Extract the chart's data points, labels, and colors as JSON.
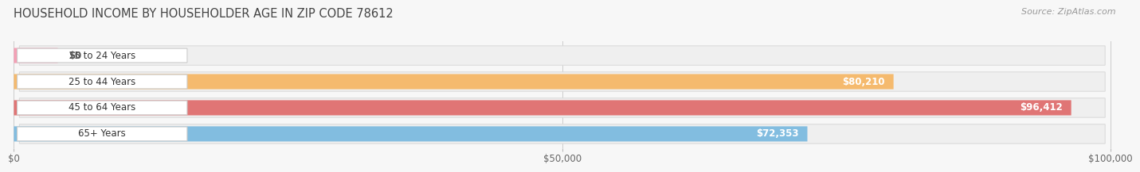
{
  "title": "HOUSEHOLD INCOME BY HOUSEHOLDER AGE IN ZIP CODE 78612",
  "source": "Source: ZipAtlas.com",
  "categories": [
    "15 to 24 Years",
    "25 to 44 Years",
    "45 to 64 Years",
    "65+ Years"
  ],
  "values": [
    0,
    80210,
    96412,
    72353
  ],
  "labels": [
    "$0",
    "$80,210",
    "$96,412",
    "$72,353"
  ],
  "bar_colors": [
    "#f4a0b5",
    "#f5ba6e",
    "#e07575",
    "#82bde0"
  ],
  "x_max": 100000,
  "x_ticks": [
    0,
    50000,
    100000
  ],
  "x_tick_labels": [
    "$0",
    "$50,000",
    "$100,000"
  ],
  "title_fontsize": 10.5,
  "label_fontsize": 8.5,
  "tick_fontsize": 8.5,
  "source_fontsize": 8.0,
  "row_facecolor": "#efefef",
  "row_edgecolor": "#d8d8d8",
  "pill_facecolor": "#ffffff",
  "pill_edgecolor": "#cccccc",
  "fig_facecolor": "#f7f7f7"
}
